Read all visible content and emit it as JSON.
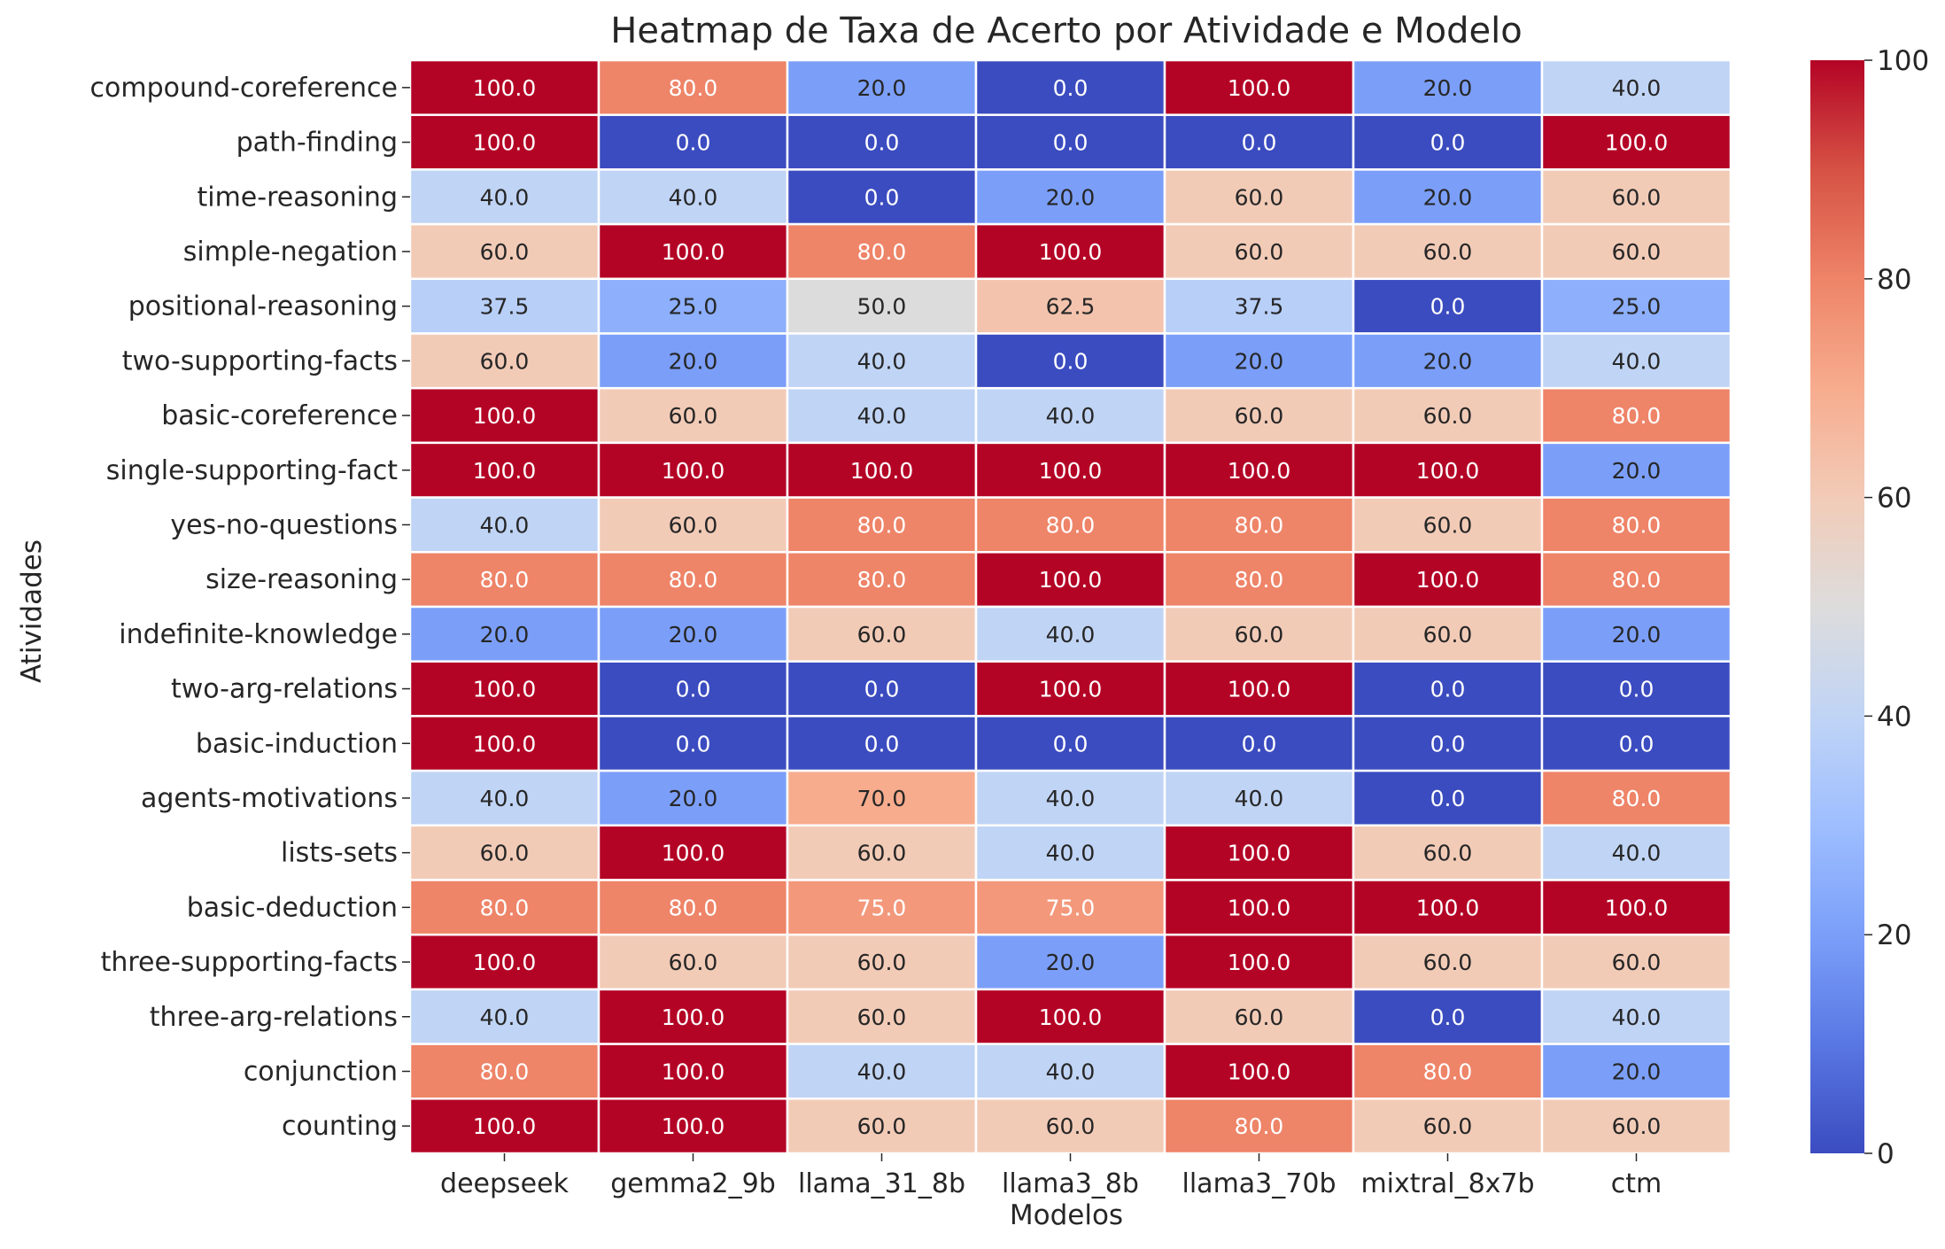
{
  "chart_data": {
    "type": "heatmap",
    "title": "Heatmap de Taxa de Acerto por Atividade e Modelo",
    "xlabel": "Modelos",
    "ylabel": "Atividades",
    "x_categories": [
      "deepseek",
      "gemma2_9b",
      "llama_31_8b",
      "llama3_8b",
      "llama3_70b",
      "mixtral_8x7b",
      "ctm"
    ],
    "y_categories": [
      "compound-coreference",
      "path-finding",
      "time-reasoning",
      "simple-negation",
      "positional-reasoning",
      "two-supporting-facts",
      "basic-coreference",
      "single-supporting-fact",
      "yes-no-questions",
      "size-reasoning",
      "indefinite-knowledge",
      "two-arg-relations",
      "basic-induction",
      "agents-motivations",
      "lists-sets",
      "basic-deduction",
      "three-supporting-facts",
      "three-arg-relations",
      "conjunction",
      "counting"
    ],
    "values": [
      [
        100.0,
        80.0,
        20.0,
        0.0,
        100.0,
        20.0,
        40.0
      ],
      [
        100.0,
        0.0,
        0.0,
        0.0,
        0.0,
        0.0,
        100.0
      ],
      [
        40.0,
        40.0,
        0.0,
        20.0,
        60.0,
        20.0,
        60.0
      ],
      [
        60.0,
        100.0,
        80.0,
        100.0,
        60.0,
        60.0,
        60.0
      ],
      [
        37.5,
        25.0,
        50.0,
        62.5,
        37.5,
        0.0,
        25.0
      ],
      [
        60.0,
        20.0,
        40.0,
        0.0,
        20.0,
        20.0,
        40.0
      ],
      [
        100.0,
        60.0,
        40.0,
        40.0,
        60.0,
        60.0,
        80.0
      ],
      [
        100.0,
        100.0,
        100.0,
        100.0,
        100.0,
        100.0,
        20.0
      ],
      [
        40.0,
        60.0,
        80.0,
        80.0,
        80.0,
        60.0,
        80.0
      ],
      [
        80.0,
        80.0,
        80.0,
        100.0,
        80.0,
        100.0,
        80.0
      ],
      [
        20.0,
        20.0,
        60.0,
        40.0,
        60.0,
        60.0,
        20.0
      ],
      [
        100.0,
        0.0,
        0.0,
        100.0,
        100.0,
        0.0,
        0.0
      ],
      [
        100.0,
        0.0,
        0.0,
        0.0,
        0.0,
        0.0,
        0.0
      ],
      [
        40.0,
        20.0,
        70.0,
        40.0,
        40.0,
        0.0,
        80.0
      ],
      [
        60.0,
        100.0,
        60.0,
        40.0,
        100.0,
        60.0,
        40.0
      ],
      [
        80.0,
        80.0,
        75.0,
        75.0,
        100.0,
        100.0,
        100.0
      ],
      [
        100.0,
        60.0,
        60.0,
        20.0,
        100.0,
        60.0,
        60.0
      ],
      [
        40.0,
        100.0,
        60.0,
        100.0,
        60.0,
        0.0,
        40.0
      ],
      [
        80.0,
        100.0,
        40.0,
        40.0,
        100.0,
        80.0,
        20.0
      ],
      [
        100.0,
        100.0,
        60.0,
        60.0,
        80.0,
        60.0,
        60.0
      ]
    ],
    "value_format": "one decimal",
    "colormap": "coolwarm",
    "colormap_stops": [
      "#3b4cc0",
      "#8db0fe",
      "#dddddd",
      "#f49a7b",
      "#b40426"
    ],
    "vmin": 0,
    "vmax": 100,
    "colorbar_ticks": [
      0,
      20,
      40,
      60,
      80,
      100
    ],
    "gridlines_between_cells": true,
    "colorbar_position": "right"
  }
}
